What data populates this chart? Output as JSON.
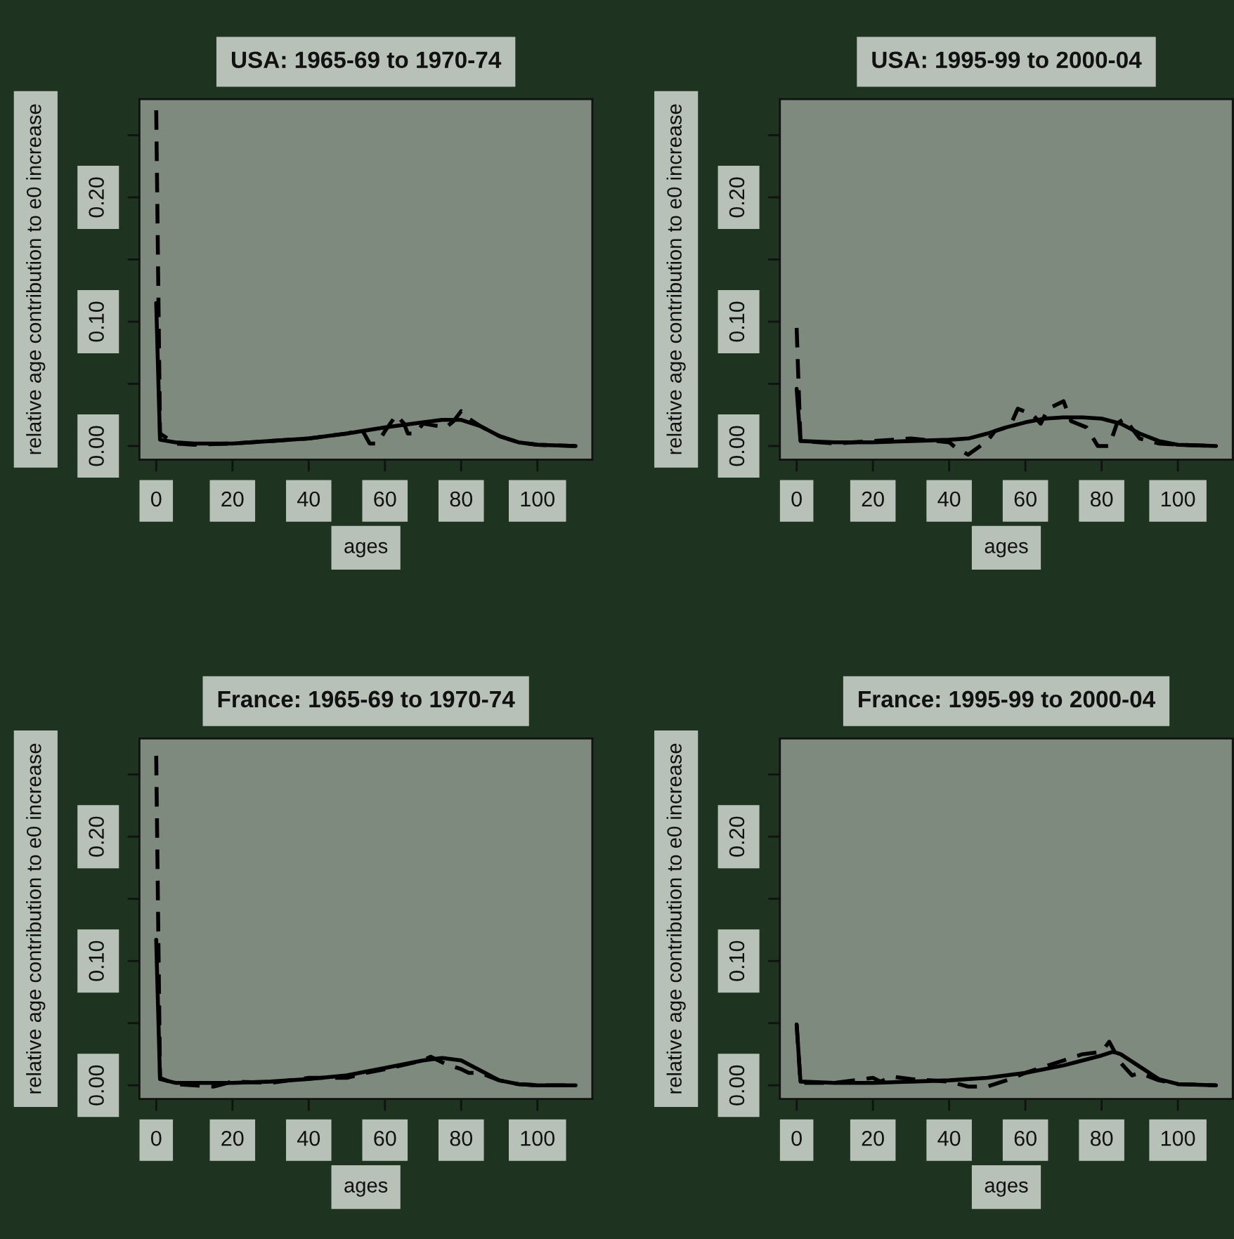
{
  "chart_data": [
    {
      "type": "line",
      "title": "USA: 1965-69 to 1970-74",
      "xlabel": "ages",
      "ylabel": "relative age contribution to e0 increase",
      "xlim": [
        -4.4,
        114.4
      ],
      "ylim": [
        -0.011,
        0.279
      ],
      "xticks": [
        0,
        20,
        40,
        60,
        80,
        100
      ],
      "yticks": [
        {
          "value": 0.0,
          "label": "0.00"
        },
        {
          "value": 0.05,
          "label": null
        },
        {
          "value": 0.1,
          "label": "0.10"
        },
        {
          "value": 0.15,
          "label": null
        },
        {
          "value": 0.2,
          "label": "0.20"
        },
        {
          "value": 0.25,
          "label": null
        }
      ],
      "grid": false,
      "legend": false,
      "series": [
        {
          "color": "#000000",
          "line_style": "solid",
          "x": [
            0,
            1,
            5,
            10,
            20,
            30,
            40,
            50,
            60,
            70,
            75,
            80,
            85,
            90,
            95,
            100,
            110
          ],
          "values": [
            0.115,
            0.005,
            0.003,
            0.002,
            0.002,
            0.004,
            0.006,
            0.01,
            0.015,
            0.019,
            0.021,
            0.021,
            0.016,
            0.008,
            0.003,
            0.001,
            0.0
          ]
        },
        {
          "color": "#000000",
          "line_style": "dashed",
          "x": [
            0,
            1,
            5,
            10,
            20,
            30,
            40,
            45,
            50,
            54,
            56,
            58,
            60,
            63,
            65,
            66,
            68,
            70,
            72,
            76,
            78,
            80,
            82,
            85,
            90,
            95,
            100,
            110
          ],
          "values": [
            0.27,
            0.01,
            0.002,
            0.001,
            0.002,
            0.004,
            0.006,
            0.008,
            0.01,
            0.013,
            0.002,
            0.002,
            0.012,
            0.025,
            0.018,
            0.01,
            0.01,
            0.018,
            0.017,
            0.015,
            0.02,
            0.028,
            0.022,
            0.016,
            0.008,
            0.003,
            0.001,
            0.0
          ]
        }
      ]
    },
    {
      "type": "line",
      "title": "USA: 1995-99 to 2000-04",
      "xlabel": "ages",
      "ylabel": "relative age contribution to e0 increase",
      "xlim": [
        -4.4,
        114.4
      ],
      "ylim": [
        -0.011,
        0.279
      ],
      "xticks": [
        0,
        20,
        40,
        60,
        80,
        100
      ],
      "yticks": [
        {
          "value": 0.0,
          "label": "0.00"
        },
        {
          "value": 0.05,
          "label": null
        },
        {
          "value": 0.1,
          "label": "0.10"
        },
        {
          "value": 0.15,
          "label": null
        },
        {
          "value": 0.2,
          "label": "0.20"
        },
        {
          "value": 0.25,
          "label": null
        }
      ],
      "grid": false,
      "legend": false,
      "series": [
        {
          "color": "#000000",
          "line_style": "solid",
          "x": [
            0,
            1,
            10,
            20,
            30,
            40,
            45,
            50,
            55,
            60,
            65,
            70,
            75,
            80,
            85,
            90,
            95,
            100,
            110
          ],
          "values": [
            0.046,
            0.004,
            0.003,
            0.003,
            0.004,
            0.005,
            0.006,
            0.01,
            0.015,
            0.019,
            0.022,
            0.023,
            0.023,
            0.022,
            0.018,
            0.01,
            0.004,
            0.001,
            0.0
          ]
        },
        {
          "color": "#000000",
          "line_style": "dashed",
          "x": [
            0,
            1,
            10,
            20,
            30,
            40,
            42,
            45,
            50,
            52,
            56,
            58,
            62,
            64,
            66,
            70,
            72,
            76,
            79,
            82,
            84,
            86,
            90,
            95,
            100,
            110
          ],
          "values": [
            0.095,
            0.004,
            0.002,
            0.004,
            0.006,
            0.003,
            -0.002,
            -0.007,
            0.004,
            0.012,
            0.016,
            0.03,
            0.025,
            0.018,
            0.03,
            0.036,
            0.02,
            0.015,
            0.0,
            0.0,
            0.018,
            0.022,
            0.006,
            0.002,
            0.001,
            0.0
          ]
        }
      ]
    },
    {
      "type": "line",
      "title": "France: 1965-69 to 1970-74",
      "xlabel": "ages",
      "ylabel": "relative age contribution to e0 increase",
      "xlim": [
        -4.4,
        114.4
      ],
      "ylim": [
        -0.011,
        0.279
      ],
      "xticks": [
        0,
        20,
        40,
        60,
        80,
        100
      ],
      "yticks": [
        {
          "value": 0.0,
          "label": "0.00"
        },
        {
          "value": 0.05,
          "label": null
        },
        {
          "value": 0.1,
          "label": "0.10"
        },
        {
          "value": 0.15,
          "label": null
        },
        {
          "value": 0.2,
          "label": "0.20"
        },
        {
          "value": 0.25,
          "label": null
        }
      ],
      "grid": false,
      "legend": false,
      "series": [
        {
          "color": "#000000",
          "line_style": "solid",
          "x": [
            0,
            1,
            5,
            10,
            20,
            30,
            40,
            50,
            60,
            70,
            75,
            80,
            85,
            90,
            95,
            100,
            110
          ],
          "values": [
            0.117,
            0.005,
            0.002,
            0.002,
            0.002,
            0.003,
            0.005,
            0.008,
            0.014,
            0.02,
            0.022,
            0.02,
            0.012,
            0.004,
            0.001,
            0.0,
            0.0
          ]
        },
        {
          "color": "#000000",
          "line_style": "dashed",
          "x": [
            0,
            1,
            5,
            10,
            15,
            20,
            30,
            40,
            50,
            55,
            60,
            70,
            72,
            76,
            80,
            82,
            85,
            90,
            95,
            100,
            110
          ],
          "values": [
            0.265,
            0.006,
            0.001,
            0.0,
            -0.001,
            0.003,
            0.002,
            0.006,
            0.006,
            0.01,
            0.013,
            0.02,
            0.023,
            0.017,
            0.013,
            0.01,
            0.01,
            0.004,
            0.001,
            0.0,
            0.0
          ]
        }
      ]
    },
    {
      "type": "line",
      "title": "France: 1995-99 to 2000-04",
      "xlabel": "ages",
      "ylabel": "relative age contribution to e0 increase",
      "xlim": [
        -4.4,
        114.4
      ],
      "ylim": [
        -0.011,
        0.279
      ],
      "xticks": [
        0,
        20,
        40,
        60,
        80,
        100
      ],
      "yticks": [
        {
          "value": 0.0,
          "label": "0.00"
        },
        {
          "value": 0.05,
          "label": null
        },
        {
          "value": 0.1,
          "label": "0.10"
        },
        {
          "value": 0.15,
          "label": null
        },
        {
          "value": 0.2,
          "label": "0.20"
        },
        {
          "value": 0.25,
          "label": null
        }
      ],
      "grid": false,
      "legend": false,
      "series": [
        {
          "color": "#000000",
          "line_style": "solid",
          "x": [
            0,
            1,
            10,
            20,
            30,
            40,
            50,
            60,
            70,
            80,
            83,
            85,
            90,
            95,
            100,
            110
          ],
          "values": [
            0.049,
            0.003,
            0.002,
            0.002,
            0.003,
            0.004,
            0.006,
            0.01,
            0.016,
            0.024,
            0.027,
            0.025,
            0.015,
            0.005,
            0.001,
            0.0
          ]
        },
        {
          "color": "#000000",
          "line_style": "dashed",
          "x": [
            0,
            1,
            10,
            20,
            22,
            25,
            30,
            40,
            45,
            50,
            55,
            60,
            65,
            70,
            75,
            80,
            82,
            85,
            88,
            90,
            95,
            100,
            110
          ],
          "values": [
            0.049,
            0.002,
            0.002,
            0.006,
            0.003,
            0.007,
            0.005,
            0.003,
            -0.001,
            -0.001,
            0.004,
            0.01,
            0.015,
            0.02,
            0.025,
            0.027,
            0.035,
            0.018,
            0.008,
            0.01,
            0.004,
            0.001,
            0.0
          ]
        }
      ]
    }
  ]
}
